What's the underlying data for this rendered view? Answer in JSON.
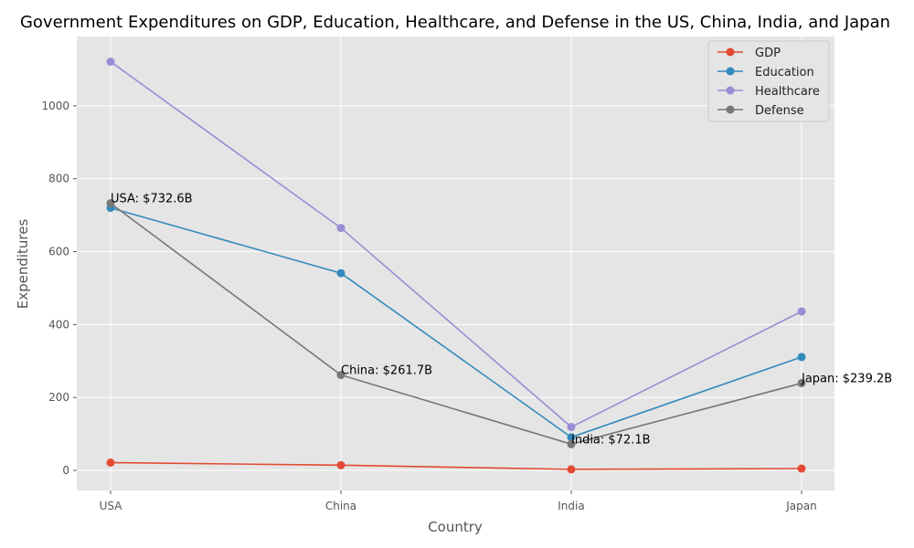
{
  "chart_data": {
    "type": "line",
    "title": "Government Expenditures on GDP, Education, Healthcare, and Defense in the US, China, India, and Japan",
    "xlabel": "Country",
    "ylabel": "Expenditures",
    "categories": [
      "USA",
      "China",
      "India",
      "Japan"
    ],
    "ylim": [
      -55,
      1190
    ],
    "yticks": [
      0,
      200,
      400,
      600,
      800,
      1000
    ],
    "grid": true,
    "legend_position": "top-right",
    "series": [
      {
        "name": "GDP",
        "color": "#E24A33",
        "values": [
          21.4,
          14.3,
          2.9,
          5.1
        ]
      },
      {
        "name": "Education",
        "color": "#348ABD",
        "values": [
          720,
          541,
          91,
          311
        ]
      },
      {
        "name": "Healthcare",
        "color": "#988ED5",
        "values": [
          1121,
          665,
          119,
          436
        ]
      },
      {
        "name": "Defense",
        "color": "#777777",
        "values": [
          732.6,
          261.7,
          72.1,
          239.2
        ]
      }
    ],
    "annotations": [
      {
        "category": "USA",
        "value": 732.6,
        "text": "USA: $732.6B"
      },
      {
        "category": "China",
        "value": 261.7,
        "text": "China: $261.7B"
      },
      {
        "category": "India",
        "value": 72.1,
        "text": "India: $72.1B"
      },
      {
        "category": "Japan",
        "value": 239.2,
        "text": "Japan: $239.2B"
      }
    ]
  }
}
